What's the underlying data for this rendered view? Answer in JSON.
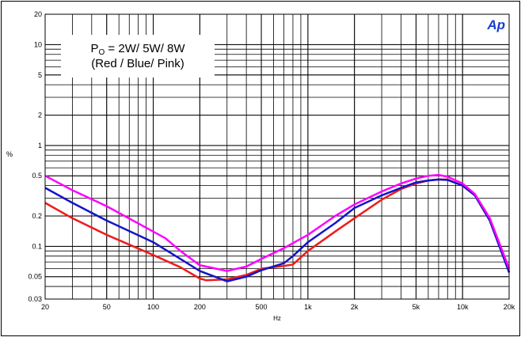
{
  "chart_data": {
    "type": "line",
    "x_label": "Hz",
    "y_label": "%",
    "logo": "Ap",
    "annotation": {
      "symbol": "P",
      "subscript": "O",
      "text": " = 2W/ 5W/ 8W",
      "line2": "(Red / Blue/ Pink)"
    },
    "xlog": true,
    "ylog": true,
    "grid": true,
    "minor_grid": true,
    "xlim": [
      20,
      20000
    ],
    "ylim": [
      0.03,
      20
    ],
    "xticks": [
      20,
      50,
      100,
      200,
      500,
      {
        "value": 1000,
        "label": "1k"
      },
      {
        "value": 2000,
        "label": "2k"
      },
      {
        "value": 5000,
        "label": "5k"
      },
      {
        "value": 10000,
        "label": "10k"
      },
      {
        "value": 20000,
        "label": "20k"
      }
    ],
    "yticks": [
      0.03,
      0.05,
      0.1,
      0.2,
      0.5,
      1,
      2,
      5,
      10,
      20
    ],
    "series": [
      {
        "color": "#ee1c1c",
        "x": [
          20,
          30,
          50,
          100,
          150,
          200,
          220,
          300,
          400,
          500,
          700,
          800,
          1000,
          1500,
          2000,
          3000,
          4000,
          5000,
          6000,
          7000,
          8000,
          10000,
          12000,
          15000,
          20000
        ],
        "values": [
          0.27,
          0.19,
          0.13,
          0.082,
          0.062,
          0.048,
          0.046,
          0.047,
          0.052,
          0.06,
          0.064,
          0.066,
          0.09,
          0.14,
          0.19,
          0.29,
          0.37,
          0.42,
          0.45,
          0.46,
          0.46,
          0.4,
          0.32,
          0.18,
          0.056
        ]
      },
      {
        "color": "#1414c8",
        "x": [
          20,
          30,
          50,
          100,
          150,
          200,
          250,
          300,
          400,
          500,
          700,
          800,
          1000,
          1500,
          2000,
          3000,
          4000,
          5000,
          6000,
          7000,
          8000,
          10000,
          12000,
          15000,
          20000
        ],
        "values": [
          0.38,
          0.27,
          0.18,
          0.11,
          0.075,
          0.057,
          0.05,
          0.045,
          0.05,
          0.058,
          0.068,
          0.08,
          0.11,
          0.17,
          0.24,
          0.32,
          0.38,
          0.43,
          0.45,
          0.46,
          0.455,
          0.4,
          0.32,
          0.18,
          0.055
        ]
      },
      {
        "color": "#ff00ff",
        "x": [
          20,
          30,
          50,
          100,
          120,
          150,
          200,
          300,
          400,
          500,
          700,
          1000,
          1500,
          2000,
          3000,
          4000,
          5000,
          6000,
          7000,
          8000,
          10000,
          12000,
          15000,
          20000
        ],
        "values": [
          0.5,
          0.36,
          0.25,
          0.14,
          0.12,
          0.09,
          0.065,
          0.057,
          0.063,
          0.075,
          0.096,
          0.13,
          0.2,
          0.26,
          0.35,
          0.42,
          0.47,
          0.5,
          0.51,
          0.49,
          0.42,
          0.33,
          0.19,
          0.06
        ]
      }
    ]
  }
}
